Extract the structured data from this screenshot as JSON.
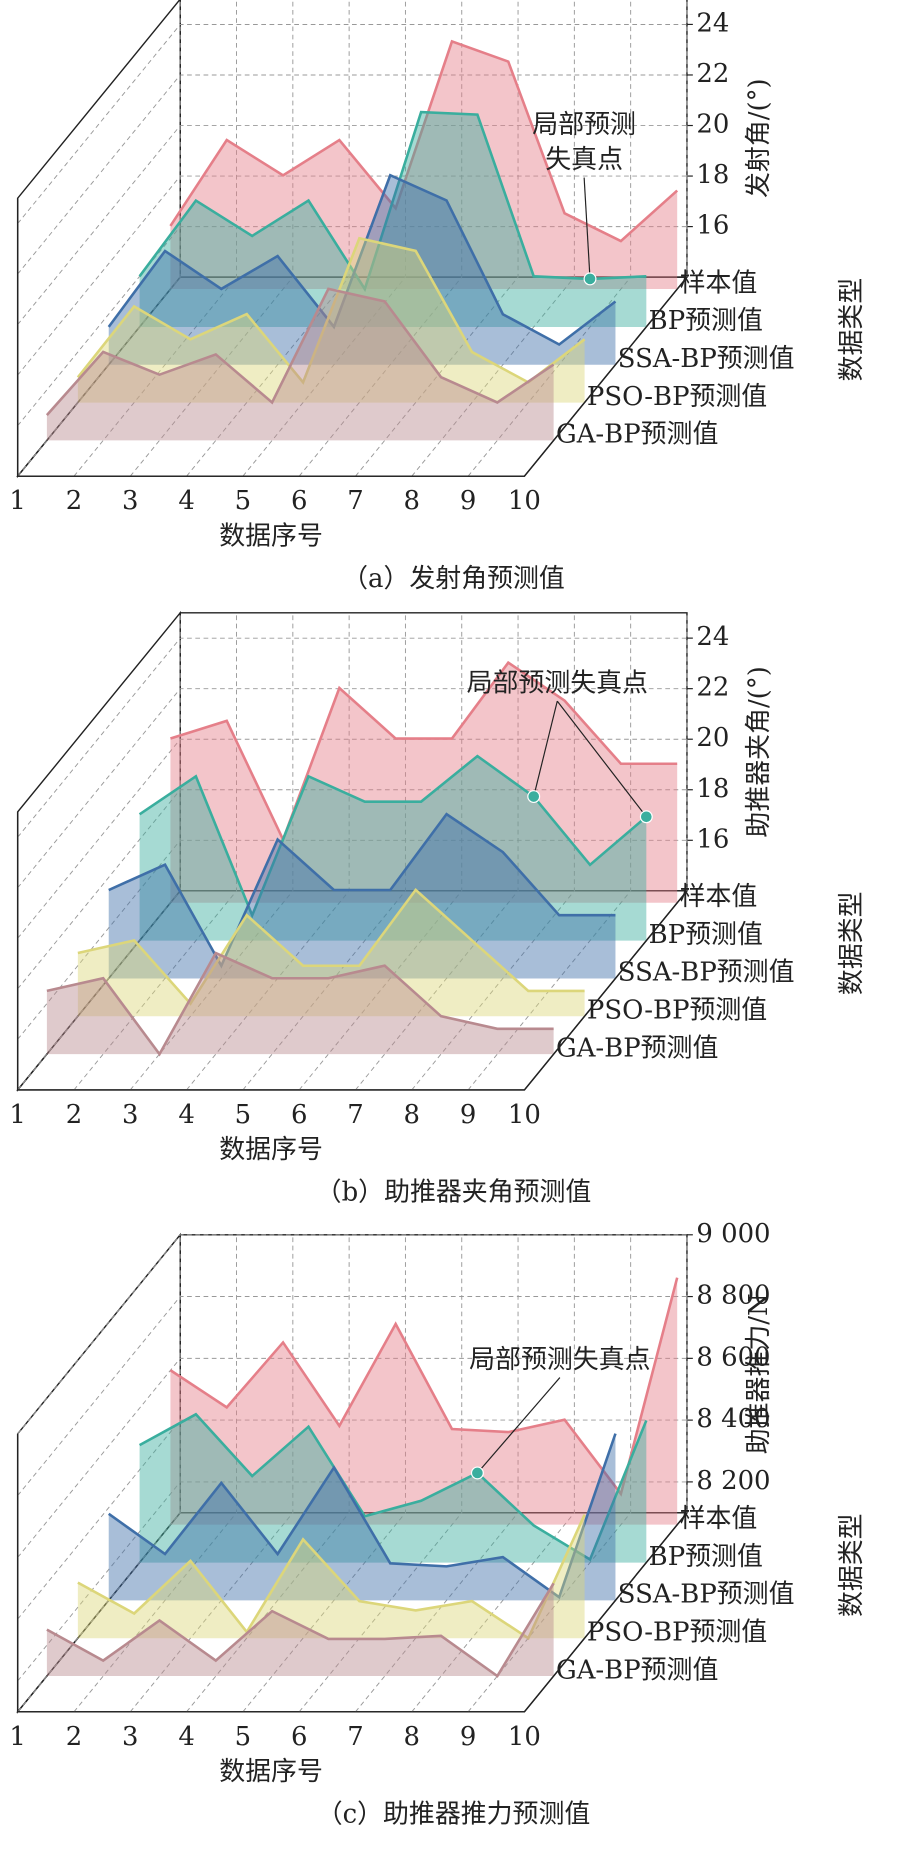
{
  "chart_data": [
    {
      "type": "area3d",
      "caption": "（a）发射角预测值",
      "xlabel": "数据序号",
      "ylabel": "数据类型",
      "zlabel": "发射角/(°)",
      "x": [
        1,
        2,
        3,
        4,
        5,
        6,
        7,
        8,
        9,
        10
      ],
      "zlim": [
        14,
        25
      ],
      "zticks": [
        16,
        18,
        20,
        22,
        24
      ],
      "grid": true,
      "series": [
        {
          "name": "样本值",
          "color": "#e57f89",
          "values": [
            16.5,
            19.9,
            18.5,
            19.9,
            17.2,
            23.8,
            23.0,
            17.0,
            15.9,
            17.9
          ]
        },
        {
          "name": "BP预测值",
          "color": "#3aae9e",
          "values": [
            16.0,
            19.0,
            17.6,
            19.0,
            15.5,
            22.5,
            22.4,
            16.0,
            15.9,
            16.0
          ]
        },
        {
          "name": "SSA-BP预测值",
          "color": "#3f6fa8",
          "values": [
            15.5,
            18.5,
            17.0,
            18.3,
            15.5,
            21.5,
            20.5,
            16.0,
            14.8,
            16.5
          ]
        },
        {
          "name": "PSO-BP预测值",
          "color": "#dcd67a",
          "values": [
            15.0,
            17.8,
            16.5,
            17.5,
            14.8,
            20.5,
            20.0,
            16.0,
            14.8,
            16.5
          ]
        },
        {
          "name": "GA-BP预测值",
          "color": "#b88a8f",
          "values": [
            15.0,
            17.5,
            16.6,
            17.4,
            15.5,
            20.0,
            19.5,
            16.5,
            15.5,
            17.0
          ]
        }
      ],
      "annotation": {
        "text": [
          "局部预测",
          "失真点"
        ],
        "points": [
          [
            1,
            8
          ]
        ]
      }
    },
    {
      "type": "area3d",
      "caption": "（b）助推器夹角预测值",
      "xlabel": "数据序号",
      "ylabel": "数据类型",
      "zlabel": "助推器夹角/(°)",
      "x": [
        1,
        2,
        3,
        4,
        5,
        6,
        7,
        8,
        9,
        10
      ],
      "zlim": [
        14,
        25
      ],
      "zticks": [
        16,
        18,
        20,
        22,
        24
      ],
      "grid": true,
      "series": [
        {
          "name": "样本值",
          "color": "#e57f89",
          "values": [
            20.5,
            21.2,
            16.5,
            22.5,
            20.5,
            20.5,
            23.5,
            22.0,
            19.5,
            19.5
          ]
        },
        {
          "name": "BP预测值",
          "color": "#3aae9e",
          "values": [
            19.0,
            20.5,
            15.0,
            20.5,
            19.5,
            19.5,
            21.3,
            19.7,
            17.0,
            18.9
          ]
        },
        {
          "name": "SSA-BP预测值",
          "color": "#3f6fa8",
          "values": [
            17.5,
            18.5,
            14.5,
            19.5,
            17.5,
            17.5,
            20.5,
            19.0,
            16.5,
            16.5
          ]
        },
        {
          "name": "PSO-BP预测值",
          "color": "#dcd67a",
          "values": [
            16.5,
            17.0,
            14.5,
            18.0,
            16.0,
            16.0,
            19.0,
            17.0,
            15.0,
            15.0
          ]
        },
        {
          "name": "GA-BP预测值",
          "color": "#b88a8f",
          "values": [
            16.5,
            17.0,
            14.0,
            18.0,
            17.0,
            17.0,
            17.5,
            15.5,
            15.0,
            15.0
          ]
        }
      ],
      "annotation": {
        "text": [
          "局部预测失真点"
        ],
        "points": [
          [
            1,
            7
          ],
          [
            1,
            9
          ]
        ]
      }
    },
    {
      "type": "area3d",
      "caption": "（c）助推器推力预测值",
      "xlabel": "数据序号",
      "ylabel": "数据类型",
      "zlabel": "助推器推力/N",
      "x": [
        1,
        2,
        3,
        4,
        5,
        6,
        7,
        8,
        9,
        10
      ],
      "zlim": [
        8100,
        9000
      ],
      "zticks": [
        {
          "value": 8200,
          "label": "8 200"
        },
        {
          "value": 8400,
          "label": "8 400"
        },
        {
          "value": 8600,
          "label": "8 600"
        },
        {
          "value": 8800,
          "label": "8 800"
        },
        {
          "value": 9000,
          "label": "9 000"
        }
      ],
      "grid": true,
      "series": [
        {
          "name": "样本值",
          "color": "#e57f89",
          "values": [
            8600,
            8480,
            8690,
            8420,
            8750,
            8410,
            8400,
            8440,
            8200,
            8900
          ]
        },
        {
          "name": "BP预测值",
          "color": "#3aae9e",
          "values": [
            8480,
            8580,
            8380,
            8540,
            8250,
            8300,
            8390,
            8220,
            8110,
            8560
          ]
        },
        {
          "name": "SSA-BP预测值",
          "color": "#3f6fa8",
          "values": [
            8380,
            8250,
            8480,
            8250,
            8530,
            8220,
            8210,
            8240,
            8110,
            8640
          ]
        },
        {
          "name": "PSO-BP预测值",
          "color": "#dcd67a",
          "values": [
            8280,
            8180,
            8350,
            8120,
            8420,
            8220,
            8190,
            8220,
            8100,
            8500
          ]
        },
        {
          "name": "GA-BP预测值",
          "color": "#b88a8f",
          "values": [
            8250,
            8150,
            8280,
            8150,
            8310,
            8220,
            8220,
            8230,
            8100,
            8400
          ]
        }
      ],
      "annotation": {
        "text": [
          "局部预测失真点"
        ],
        "points": [
          [
            1,
            6
          ]
        ]
      }
    }
  ]
}
